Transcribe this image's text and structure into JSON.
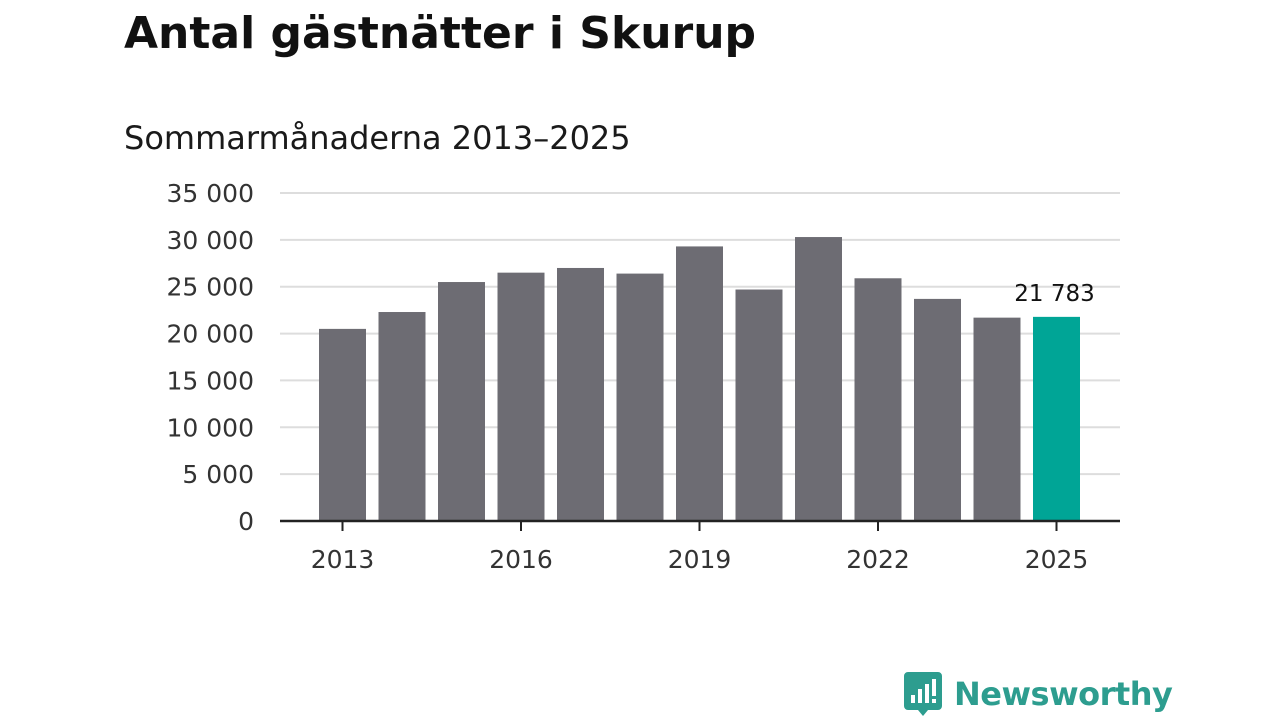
{
  "chart_data": {
    "type": "bar",
    "title": "Antal gästnätter i Skurup",
    "subtitle": "Sommarmånaderna 2013–2025",
    "categories": [
      "2013",
      "2014",
      "2015",
      "2016",
      "2017",
      "2018",
      "2019",
      "2020",
      "2021",
      "2022",
      "2023",
      "2024",
      "2025"
    ],
    "x_tick_labels": [
      "2013",
      "2016",
      "2019",
      "2022",
      "2025"
    ],
    "values": [
      20500,
      22300,
      25500,
      26500,
      27000,
      26400,
      29300,
      24700,
      30300,
      25900,
      23700,
      21700,
      21783
    ],
    "y_ticks": [
      0,
      5000,
      10000,
      15000,
      20000,
      25000,
      30000,
      35000
    ],
    "y_tick_labels": [
      "0",
      "5 000",
      "10 000",
      "15 000",
      "20 000",
      "25 000",
      "30 000",
      "35 000"
    ],
    "ylim": [
      0,
      35000
    ],
    "xlabel": "",
    "ylabel": "",
    "grid": true,
    "legend": false,
    "annotations": [
      {
        "category": "2025",
        "text": "21 783"
      }
    ],
    "highlight_category": "2025",
    "colors": {
      "bar": "#6d6c73",
      "highlight": "#00a596",
      "grid": "#dddddd",
      "axis": "#222222"
    }
  },
  "branding": {
    "logo_text": "Newsworthy",
    "logo_color": "#2d9d8f"
  }
}
